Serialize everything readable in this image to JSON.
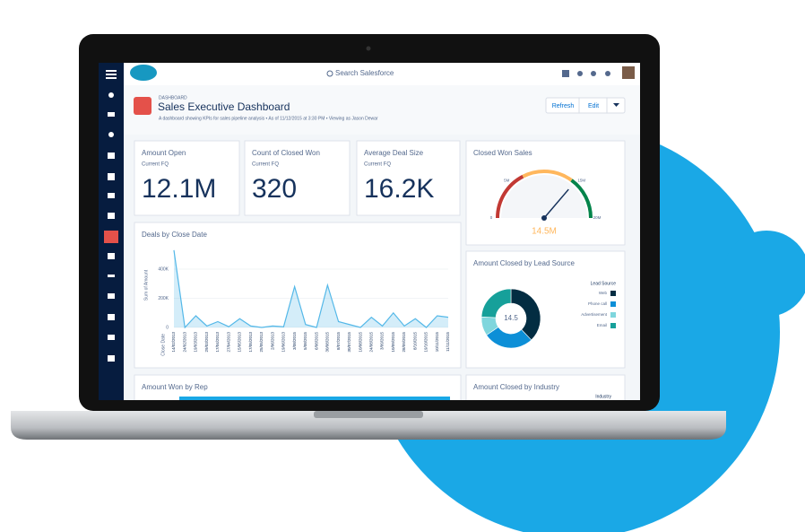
{
  "topbar": {
    "search": "Search Salesforce"
  },
  "header": {
    "label": "DASHBOARD",
    "title": "Sales Executive Dashboard",
    "subtitle": "A dashboard showing KPIs for sales pipeline analysis • As of 11/12/2015 at 3:30 PM • Viewing as Jason Dewar",
    "buttons": [
      "Refresh",
      "Edit"
    ]
  },
  "kpis": [
    {
      "title": "Amount Open",
      "subtitle": "Current FQ",
      "value": "12.1M"
    },
    {
      "title": "Count of Closed Won",
      "subtitle": "Current FQ",
      "value": "320"
    },
    {
      "title": "Average Deal Size",
      "subtitle": "Current FQ",
      "value": "16.2K"
    }
  ],
  "gauge": {
    "title": "Closed Won Sales",
    "range": [
      0,
      20000000
    ],
    "ticks": [
      {
        "value": 0,
        "label": "0"
      },
      {
        "value": 5000000,
        "label": "5M"
      },
      {
        "value": 15000000,
        "label": "15M"
      },
      {
        "value": 20000000,
        "label": "20M"
      }
    ],
    "value": {
      "value": 14500000,
      "label": "14.5M"
    }
  },
  "chart_data": {
    "type": "area",
    "title": "Deals by Close Date",
    "y_label": "Sum of Amount",
    "x_label": "Close Date",
    "color": "#54b8e8",
    "categories": [
      "14/02/2013",
      "24/02/2013",
      "19/03/2013",
      "29/03/2013",
      "17/04/2013",
      "27/04/2013",
      "15/05/2013",
      "17/05/2013",
      "25/05/2013",
      "2/06/2013",
      "19/06/2013",
      "3/08/2015",
      "5/08/2015",
      "6/08/2015",
      "30/08/2015",
      "8/07/2015",
      "30/07/2015",
      "10/08/2015",
      "24/08/2015",
      "3/09/2015",
      "10/09/2015",
      "28/09/2015",
      "8/10/2015",
      "19/10/2015",
      "10/11/2015",
      "11/11/2015"
    ],
    "values": [
      530000,
      0,
      80000,
      10000,
      40000,
      5000,
      60000,
      10000,
      0,
      10000,
      5000,
      280000,
      20000,
      0,
      290000,
      40000,
      20000,
      0,
      70000,
      10000,
      100000,
      10000,
      60000,
      0,
      80000,
      70000
    ],
    "ylim": [
      0,
      560000
    ],
    "yticks": [
      0,
      {
        "value": 200000,
        "label": "200K"
      },
      {
        "value": 400000,
        "label": "400K"
      }
    ]
  },
  "donut": {
    "title": "Amount Closed by Lead Source",
    "legend_title": "Lead Source",
    "center": "14.5",
    "slices": [
      {
        "name": "Web",
        "color": "#032d42",
        "value": 5.5
      },
      {
        "name": "Phone call",
        "color": "#0d8fd7",
        "value": 4
      },
      {
        "name": "Advertisement",
        "color": "#7fd6dd",
        "value": 1.5
      },
      {
        "name": "Email",
        "color": "#16a09a",
        "value": 3.5
      }
    ]
  },
  "bottom": {
    "rep_title": "Amount Won by Rep",
    "industry_title": "Amount Closed by Industry",
    "industry_legend": "Industry"
  }
}
